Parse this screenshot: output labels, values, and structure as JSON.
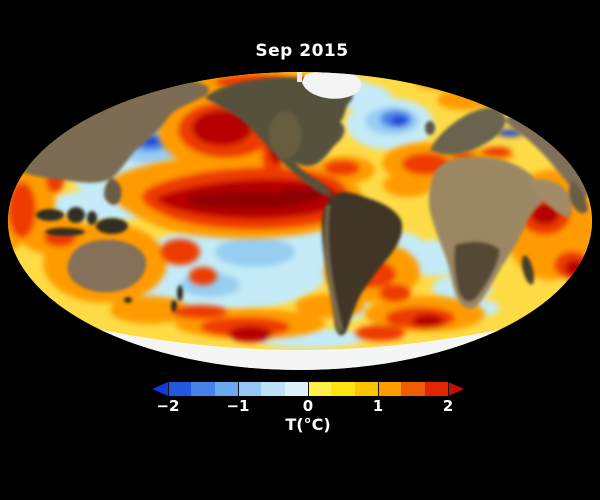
{
  "page": {
    "background_color": "#000000"
  },
  "map": {
    "title": "Sep 2015"
  },
  "colorbar": {
    "label": "T(°C)",
    "ticks": [
      "−2",
      "−1",
      "0",
      "1",
      "2"
    ],
    "tick_values": [
      -2,
      -1,
      0,
      1,
      2
    ],
    "left_arrow_color": "#1638d6",
    "right_arrow_color": "#c50d00",
    "segment_colors": [
      "#2257e0",
      "#4583ea",
      "#6aa8ef",
      "#93c8f4",
      "#bee0f8",
      "#ddf1fa",
      "#fff04a",
      "#ffe312",
      "#ffc400",
      "#ff9c00",
      "#f25c00",
      "#e22400"
    ]
  },
  "chart_data": {
    "type": "heatmap",
    "title": "Sep 2015",
    "colorbar_label": "T(°C)",
    "colorbar_ticks": [
      -2,
      -1,
      0,
      1,
      2
    ],
    "colorbar_range": [
      -2,
      2
    ],
    "legend_position": "bottom",
    "notable_anomalies": [
      {
        "region": "equatorial-east-pacific-el-nino-tongue",
        "anomaly_c": 2.0
      },
      {
        "region": "northeast-pacific-warm-blob",
        "anomaly_c": 2.0
      },
      {
        "region": "northwest-pacific",
        "anomaly_c": -1.5
      },
      {
        "region": "north-atlantic-south-of-greenland",
        "anomaly_c": -2.0
      },
      {
        "region": "arabian-sea",
        "anomaly_c": 2.0
      },
      {
        "region": "central-south-pacific",
        "anomaly_c": -0.5
      },
      {
        "region": "southern-ocean-patches",
        "anomaly_c": 1.5
      },
      {
        "region": "mediterranean-sea",
        "anomaly_c": 1.5
      }
    ]
  }
}
